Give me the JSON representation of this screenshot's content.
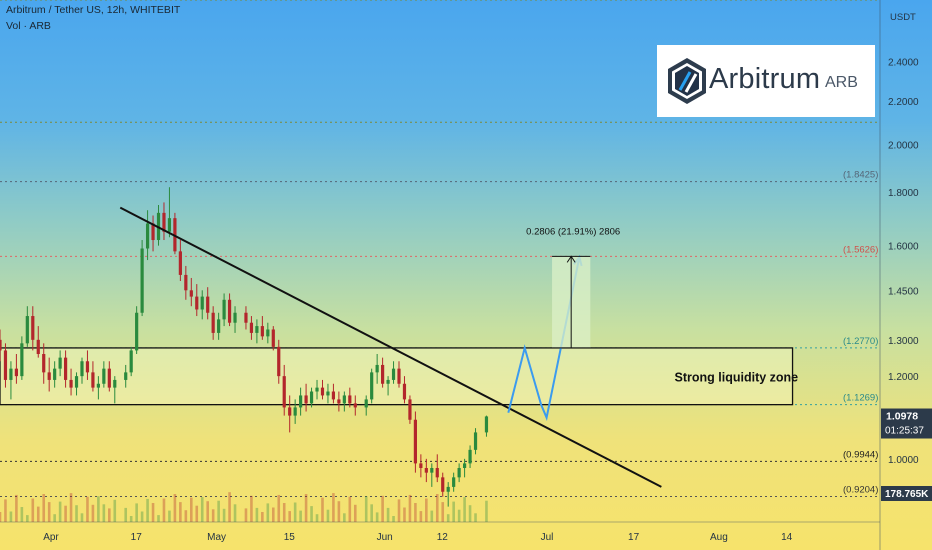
{
  "header": {
    "title": "Arbitrum / Tether US, 12h, WHITEBIT",
    "volume_label": "Vol · ARB"
  },
  "logo": {
    "brand": "Arbitrum",
    "ticker": "ARB"
  },
  "colors": {
    "bull": "#2a8a3e",
    "bear": "#b3262c",
    "trendline": "#111111",
    "projection": "#3b9bef",
    "resistance_dotted": "#e06666",
    "support_dotted": "#35a0a0"
  },
  "chart_data": {
    "type": "candlestick",
    "title": "Arbitrum / Tether US, 12h, WHITEBIT",
    "y_unit": "USDT",
    "y_scale": "log",
    "ylim": [
      0.87,
      2.75
    ],
    "y_ticks": [
      2.4,
      2.2,
      2.0,
      1.8,
      1.6,
      1.45,
      1.3,
      1.2,
      1.0
    ],
    "x_ticks": [
      "Apr",
      "17",
      "May",
      "15",
      "Jun",
      "12",
      "Jul",
      "17",
      "Aug",
      "14"
    ],
    "x_tick_dates": [
      "2023-04-01",
      "2023-04-17",
      "2023-05-01",
      "2023-05-15",
      "2023-06-01",
      "2023-06-12",
      "2023-07-01",
      "2023-07-17",
      "2023-08-01",
      "2023-08-14"
    ],
    "xlim": [
      "2023-03-23",
      "2023-08-31"
    ],
    "level_labels": {
      "top": "(1.8425)",
      "resistance": "(1.5626)",
      "zone_top": "(1.2770)",
      "zone_bottom": "(1.1269)",
      "support": "(0.9944)",
      "low": "(0.9204)"
    },
    "levels": {
      "top": 1.8425,
      "resistance": 1.5626,
      "zone_top": 1.277,
      "zone_bottom": 1.1269,
      "support": 0.9944,
      "low": 0.9204,
      "extra_dotted": [
        2.75,
        2.1
      ]
    },
    "current_price": {
      "label": "1.0978",
      "value": 1.0978,
      "countdown": "01:25:37"
    },
    "volume_label": "178.765K",
    "zone": {
      "label": "Strong liquidity zone",
      "from": "2023-03-23",
      "to": "2023-08-15",
      "low": 1.1269,
      "high": 1.277
    },
    "measurement": {
      "label": "0.2806 (21.91%) 2806",
      "from": 1.277,
      "to": 1.5626,
      "date_from": "2023-07-02",
      "date_to": "2023-07-09"
    },
    "trendline": {
      "start": [
        "2023-04-14",
        1.74
      ],
      "end": [
        "2023-07-22",
        0.94
      ]
    },
    "projection_path": [
      [
        "2023-06-24",
        1.107
      ],
      [
        "2023-06-27",
        1.277
      ],
      [
        "2023-06-30",
        1.127
      ],
      [
        "2023-07-01",
        1.095
      ],
      [
        "2023-07-07",
        1.56
      ]
    ],
    "ohlc": [
      [
        1.3,
        1.33,
        1.24,
        1.27
      ],
      [
        1.27,
        1.29,
        1.17,
        1.19
      ],
      [
        1.19,
        1.24,
        1.14,
        1.22
      ],
      [
        1.22,
        1.26,
        1.18,
        1.2
      ],
      [
        1.2,
        1.31,
        1.19,
        1.29
      ],
      [
        1.29,
        1.4,
        1.28,
        1.37
      ],
      [
        1.37,
        1.4,
        1.27,
        1.3
      ],
      [
        1.3,
        1.34,
        1.25,
        1.26
      ],
      [
        1.26,
        1.29,
        1.18,
        1.21
      ],
      [
        1.21,
        1.25,
        1.16,
        1.19
      ],
      [
        1.19,
        1.24,
        1.17,
        1.22
      ],
      [
        1.22,
        1.27,
        1.2,
        1.25
      ],
      [
        1.25,
        1.27,
        1.17,
        1.19
      ],
      [
        1.19,
        1.22,
        1.15,
        1.17
      ],
      [
        1.17,
        1.21,
        1.15,
        1.2
      ],
      [
        1.2,
        1.25,
        1.18,
        1.24
      ],
      [
        1.24,
        1.27,
        1.19,
        1.21
      ],
      [
        1.21,
        1.24,
        1.16,
        1.17
      ],
      [
        1.17,
        1.2,
        1.14,
        1.18
      ],
      [
        1.18,
        1.24,
        1.17,
        1.22
      ],
      [
        1.22,
        1.24,
        1.16,
        1.17
      ],
      [
        1.17,
        1.2,
        1.13,
        1.19
      ],
      [
        1.19,
        1.23,
        1.17,
        1.21
      ],
      [
        1.21,
        1.28,
        1.2,
        1.27
      ],
      [
        1.27,
        1.4,
        1.26,
        1.38
      ],
      [
        1.38,
        1.62,
        1.37,
        1.59
      ],
      [
        1.59,
        1.73,
        1.55,
        1.68
      ],
      [
        1.68,
        1.71,
        1.58,
        1.62
      ],
      [
        1.62,
        1.75,
        1.6,
        1.72
      ],
      [
        1.72,
        1.76,
        1.62,
        1.65
      ],
      [
        1.65,
        1.82,
        1.63,
        1.7
      ],
      [
        1.7,
        1.72,
        1.57,
        1.58
      ],
      [
        1.58,
        1.62,
        1.48,
        1.5
      ],
      [
        1.5,
        1.53,
        1.42,
        1.45
      ],
      [
        1.45,
        1.49,
        1.4,
        1.43
      ],
      [
        1.43,
        1.47,
        1.37,
        1.39
      ],
      [
        1.39,
        1.45,
        1.36,
        1.43
      ],
      [
        1.43,
        1.46,
        1.36,
        1.38
      ],
      [
        1.38,
        1.4,
        1.3,
        1.32
      ],
      [
        1.32,
        1.38,
        1.3,
        1.36
      ],
      [
        1.36,
        1.44,
        1.34,
        1.42
      ],
      [
        1.42,
        1.44,
        1.34,
        1.35
      ],
      [
        1.35,
        1.4,
        1.32,
        1.38
      ],
      [
        1.38,
        1.4,
        1.33,
        1.35
      ],
      [
        1.35,
        1.37,
        1.3,
        1.32
      ],
      [
        1.32,
        1.36,
        1.29,
        1.34
      ],
      [
        1.34,
        1.37,
        1.3,
        1.31
      ],
      [
        1.31,
        1.35,
        1.29,
        1.33
      ],
      [
        1.33,
        1.34,
        1.27,
        1.28
      ],
      [
        1.28,
        1.3,
        1.18,
        1.2
      ],
      [
        1.2,
        1.23,
        1.1,
        1.12
      ],
      [
        1.12,
        1.15,
        1.06,
        1.1
      ],
      [
        1.1,
        1.14,
        1.08,
        1.12
      ],
      [
        1.12,
        1.17,
        1.1,
        1.15
      ],
      [
        1.15,
        1.18,
        1.11,
        1.13
      ],
      [
        1.13,
        1.17,
        1.12,
        1.16
      ],
      [
        1.16,
        1.19,
        1.14,
        1.17
      ],
      [
        1.17,
        1.19,
        1.14,
        1.15
      ],
      [
        1.15,
        1.18,
        1.13,
        1.16
      ],
      [
        1.16,
        1.18,
        1.13,
        1.14
      ],
      [
        1.14,
        1.16,
        1.11,
        1.13
      ],
      [
        1.13,
        1.16,
        1.11,
        1.15
      ],
      [
        1.15,
        1.17,
        1.12,
        1.13
      ],
      [
        1.13,
        1.15,
        1.1,
        1.12
      ],
      [
        1.12,
        1.15,
        1.1,
        1.14
      ],
      [
        1.14,
        1.22,
        1.13,
        1.21
      ],
      [
        1.21,
        1.26,
        1.18,
        1.23
      ],
      [
        1.23,
        1.25,
        1.17,
        1.18
      ],
      [
        1.18,
        1.2,
        1.15,
        1.19
      ],
      [
        1.19,
        1.24,
        1.18,
        1.22
      ],
      [
        1.22,
        1.24,
        1.17,
        1.18
      ],
      [
        1.18,
        1.2,
        1.13,
        1.14
      ],
      [
        1.14,
        1.15,
        1.08,
        1.09
      ],
      [
        1.09,
        1.11,
        0.97,
        0.99
      ],
      [
        0.99,
        1.01,
        0.96,
        0.98
      ],
      [
        0.98,
        1.0,
        0.95,
        0.97
      ],
      [
        0.97,
        0.99,
        0.94,
        0.98
      ],
      [
        0.98,
        1.01,
        0.95,
        0.96
      ],
      [
        0.96,
        0.97,
        0.92,
        0.93
      ],
      [
        0.93,
        0.95,
        0.9,
        0.94
      ],
      [
        0.94,
        0.97,
        0.93,
        0.96
      ],
      [
        0.96,
        0.99,
        0.95,
        0.98
      ],
      [
        0.98,
        1.0,
        0.96,
        0.99
      ],
      [
        0.99,
        1.03,
        0.98,
        1.02
      ],
      [
        1.02,
        1.07,
        1.01,
        1.06
      ],
      [
        1.06,
        1.1,
        1.05,
        1.098
      ]
    ]
  }
}
